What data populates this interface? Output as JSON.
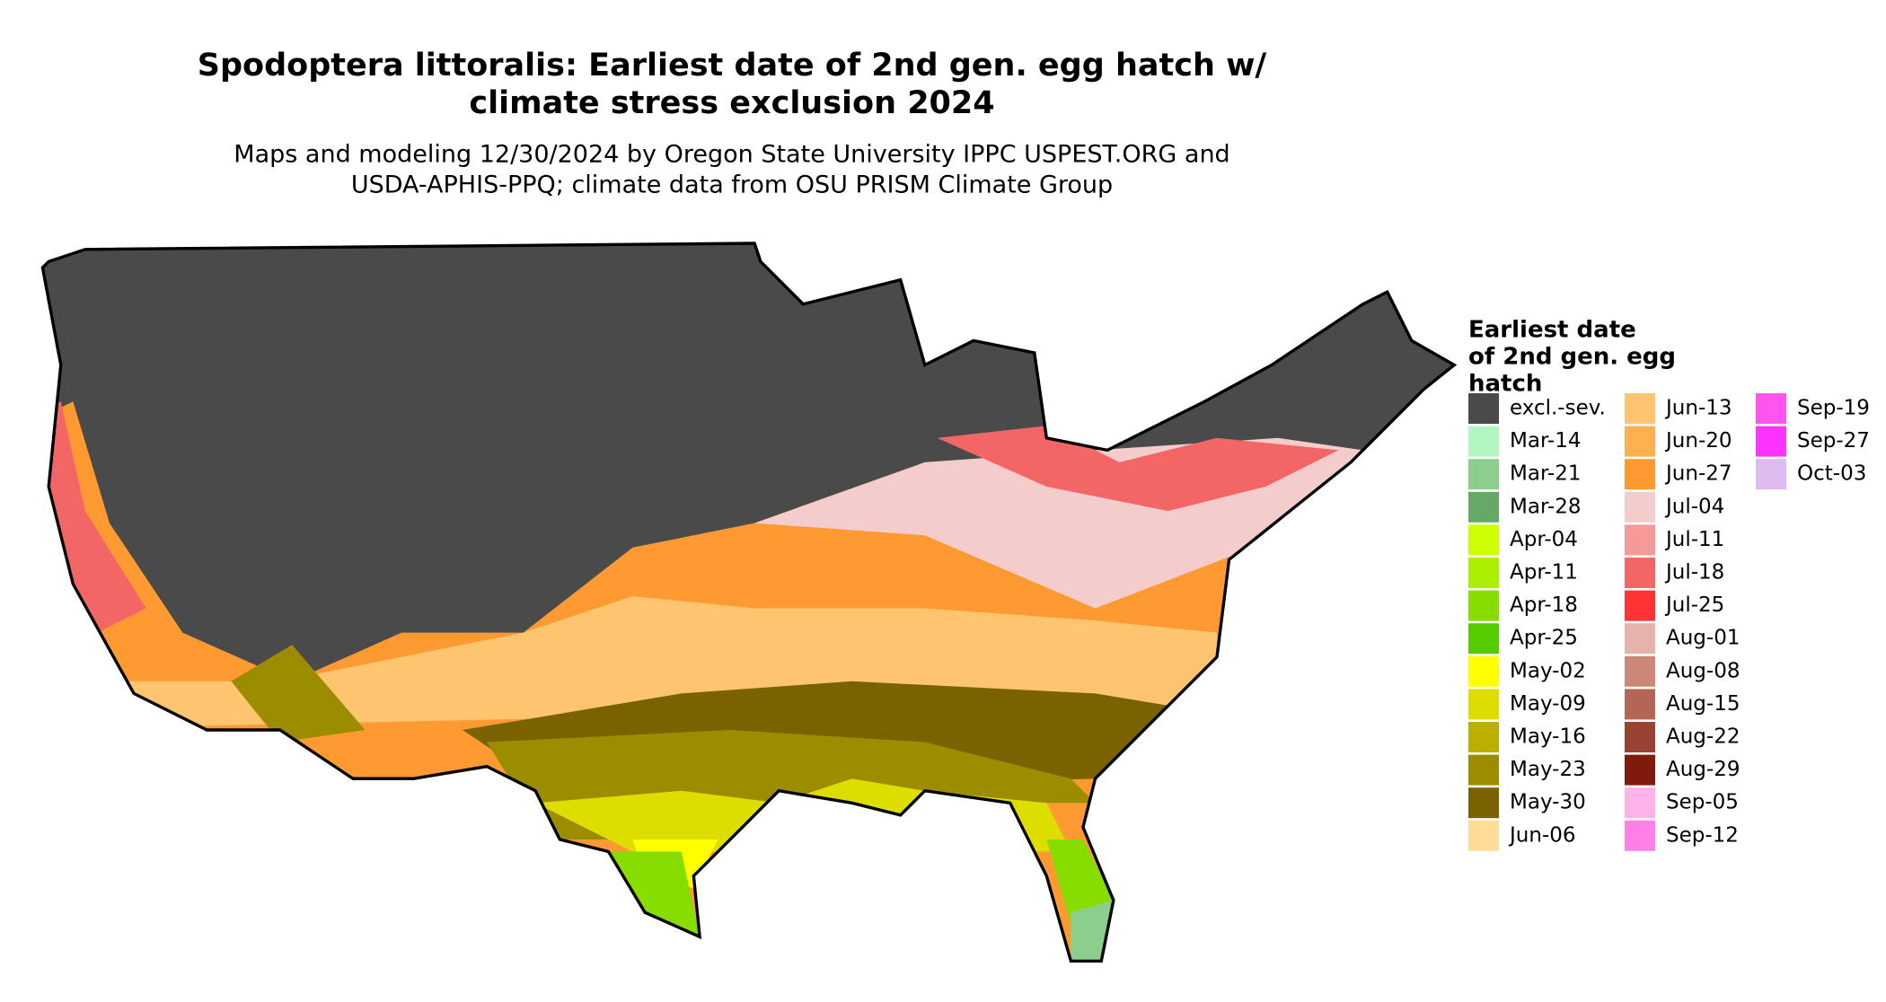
{
  "header": {
    "title_line1": "Spodoptera littoralis: Earliest date of 2nd gen. egg hatch w/",
    "title_line2": "climate stress exclusion 2024",
    "subtitle_line1": "Maps and modeling 12/30/2024 by Oregon State University IPPC USPEST.ORG and",
    "subtitle_line2": "USDA-APHIS-PPQ; climate data from OSU PRISM Climate Group"
  },
  "legend": {
    "title_lines": [
      "Earliest date",
      "of 2nd gen. egg",
      "hatch"
    ],
    "items": [
      {
        "label": "excl.-sev.",
        "color": "#4a4a4a"
      },
      {
        "label": "Mar-14",
        "color": "#b3f5c0"
      },
      {
        "label": "Mar-21",
        "color": "#8ccf8c"
      },
      {
        "label": "Mar-28",
        "color": "#66a866"
      },
      {
        "label": "Apr-04",
        "color": "#ccff00"
      },
      {
        "label": "Apr-11",
        "color": "#aaee00"
      },
      {
        "label": "Apr-18",
        "color": "#88dd00"
      },
      {
        "label": "Apr-25",
        "color": "#55cc00"
      },
      {
        "label": "May-02",
        "color": "#ffff00"
      },
      {
        "label": "May-09",
        "color": "#dddd00"
      },
      {
        "label": "May-16",
        "color": "#bbb000"
      },
      {
        "label": "May-23",
        "color": "#9c8c00"
      },
      {
        "label": "May-30",
        "color": "#7a6200"
      },
      {
        "label": "Jun-06",
        "color": "#ffdd99"
      },
      {
        "label": "Jun-13",
        "color": "#ffc470"
      },
      {
        "label": "Jun-20",
        "color": "#ffb050"
      },
      {
        "label": "Jun-27",
        "color": "#ff9a33"
      },
      {
        "label": "Jul-04",
        "color": "#f5cccc"
      },
      {
        "label": "Jul-11",
        "color": "#f59999"
      },
      {
        "label": "Jul-18",
        "color": "#f26666"
      },
      {
        "label": "Jul-25",
        "color": "#ff3333"
      },
      {
        "label": "Aug-01",
        "color": "#e6b3aa"
      },
      {
        "label": "Aug-08",
        "color": "#cc8877"
      },
      {
        "label": "Aug-15",
        "color": "#b36655"
      },
      {
        "label": "Aug-22",
        "color": "#994433"
      },
      {
        "label": "Aug-29",
        "color": "#801a0d"
      },
      {
        "label": "Sep-05",
        "color": "#ffb3e6"
      },
      {
        "label": "Sep-12",
        "color": "#ff80e6"
      },
      {
        "label": "Sep-19",
        "color": "#ff55ee"
      },
      {
        "label": "Sep-27",
        "color": "#ff33ff"
      },
      {
        "label": "Oct-03",
        "color": "#ddbbee"
      }
    ]
  }
}
